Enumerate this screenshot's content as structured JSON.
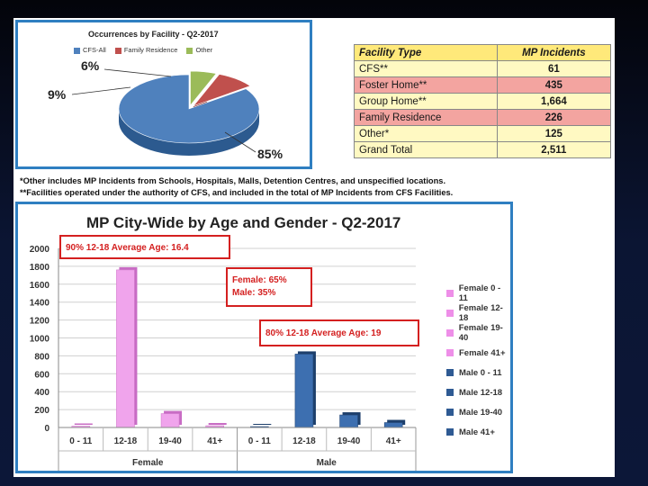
{
  "pie_chart": {
    "title": "Occurrences by Facility -  Q2-2017",
    "legend": [
      {
        "label": "CFS-All",
        "color": "#4f81bd"
      },
      {
        "label": "Family Residence",
        "color": "#c0504d"
      },
      {
        "label": "Other",
        "color": "#9bbb59"
      }
    ],
    "pct_labels": [
      "85%",
      "9%",
      "6%"
    ]
  },
  "chart_data": [
    {
      "type": "pie",
      "title": "Occurrences by Facility -  Q2-2017",
      "labels": [
        "CFS-All",
        "Family Residence",
        "Other"
      ],
      "values": [
        85,
        9,
        6
      ],
      "unit": "%"
    },
    {
      "type": "bar",
      "title": "MP City-Wide by Age and Gender -  Q2-2017",
      "categories": [
        "0 - 11",
        "12-18",
        "19-40",
        "41+",
        "0 - 11",
        "12-18",
        "19-40",
        "41+"
      ],
      "groups": [
        "Female",
        "Male"
      ],
      "series_names": [
        "Female 0 - 11",
        "Female 12-18",
        "Female 19-40",
        "Female 41+",
        "Male 0 - 11",
        "Male 12-18",
        "Male 19-40",
        "Male 41+"
      ],
      "values": [
        15,
        1760,
        155,
        20,
        10,
        820,
        140,
        55
      ],
      "ylim": [
        0,
        2000
      ],
      "yticks": [
        0,
        200,
        400,
        600,
        800,
        1000,
        1200,
        1400,
        1600,
        1800,
        2000
      ],
      "gridlines": true,
      "legend_position": "right"
    }
  ],
  "facility_table": {
    "headers": [
      "Facility Type",
      "MP Incidents"
    ],
    "rows": [
      [
        "CFS**",
        "61"
      ],
      [
        "Foster Home**",
        "435"
      ],
      [
        "Group Home**",
        "1,664"
      ],
      [
        "Family Residence",
        "226"
      ],
      [
        "Other*",
        "125"
      ],
      [
        "Grand Total",
        "2,511"
      ]
    ]
  },
  "footnotes": [
    "*Other includes MP Incidents from Schools, Hospitals, Malls, Detention Centres, and unspecified locations.",
    "**Facilities operated under the authority of CFS, and included in the total of MP Incidents from CFS Facilities."
  ],
  "bar_chart": {
    "title": "MP City-Wide by Age and Gender -  Q2-2017",
    "annotations": {
      "female_age": "90% 12-18 Average Age: 16.4",
      "gender_split": [
        "Female: 65%",
        "Male: 35%"
      ],
      "male_age": "80% 12-18 Average Age: 19"
    },
    "legend": [
      {
        "label": "Female 0 - 11",
        "color": "#ee8fe8"
      },
      {
        "label": "Female 12-18",
        "color": "#ee8fe8"
      },
      {
        "label": "Female 19-40",
        "color": "#ee8fe8"
      },
      {
        "label": "Female 41+",
        "color": "#ee8fe8"
      },
      {
        "label": "Male 0 - 11",
        "color": "#2e5a93"
      },
      {
        "label": "Male 12-18",
        "color": "#2e5a93"
      },
      {
        "label": "Male 19-40",
        "color": "#2e5a93"
      },
      {
        "label": "Male 41+",
        "color": "#2e5a93"
      }
    ]
  }
}
